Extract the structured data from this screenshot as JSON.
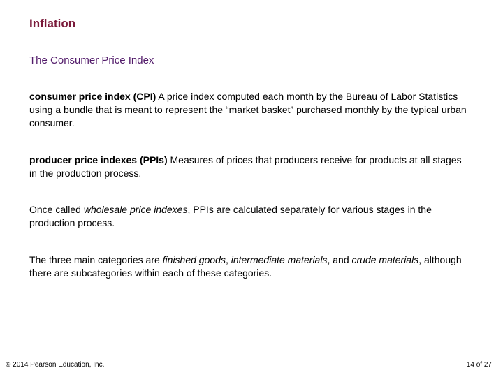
{
  "colors": {
    "title": "#7a1a3a",
    "subtitle": "#521b6a",
    "body_text": "#000000",
    "background": "#ffffff"
  },
  "typography": {
    "title_fontsize": 17,
    "subtitle_fontsize": 15,
    "body_fontsize": 14,
    "footer_fontsize": 10,
    "font_family": "Arial"
  },
  "title": "Inflation",
  "subtitle": "The Consumer Price Index",
  "paragraphs": {
    "p1": {
      "term": "consumer price index (CPI)",
      "rest": "  A price index computed each month by the Bureau of Labor Statistics using a bundle that is meant to represent the “market basket” purchased monthly by the typical urban consumer."
    },
    "p2": {
      "term": "producer price indexes (PPIs)",
      "rest": "  Measures of prices that producers receive for products at all stages in the production process."
    },
    "p3": {
      "pre": "Once called ",
      "ital": "wholesale price indexes",
      "post": ", PPIs are calculated separately for various stages in the production process."
    },
    "p4": {
      "pre": "The three main categories are ",
      "i1": "finished goods",
      "mid1": ", ",
      "i2": "intermediate materials",
      "mid2": ", and ",
      "i3": "crude materials",
      "post": ", although there are subcategories within each of these categories."
    }
  },
  "footer": {
    "copyright": "© 2014 Pearson Education, Inc.",
    "page": "14 of 27"
  }
}
